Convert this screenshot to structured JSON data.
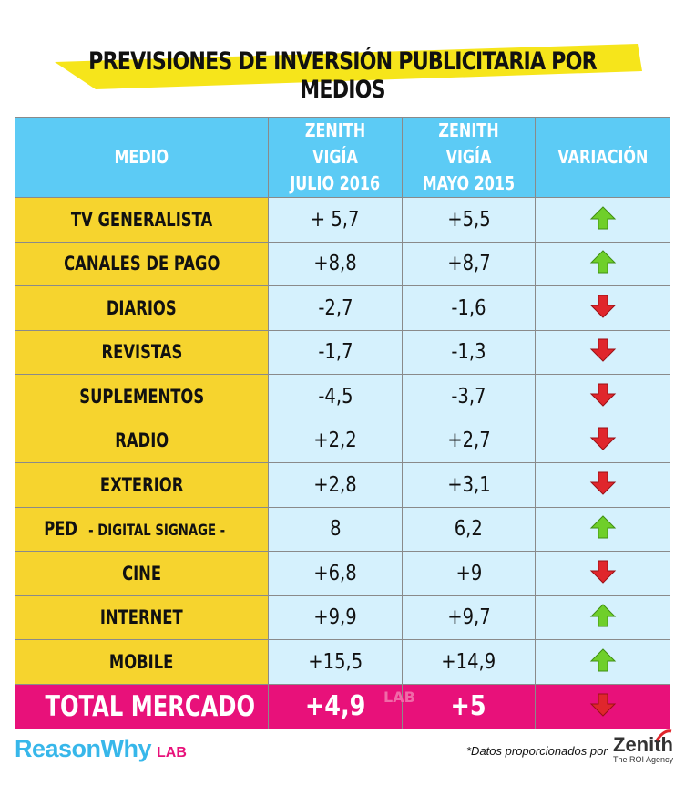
{
  "title": "PREVISIONES DE INVERSIÓN PUBLICITARIA POR MEDIOS",
  "header": {
    "medio": "MEDIO",
    "col1_line1": "ZENITH VIGÍA",
    "col1_line2": "JULIO 2016",
    "col2_line1": "ZENITH VIGÍA",
    "col2_line2": "MAYO 2015",
    "variacion": "VARIACIÓN"
  },
  "rows": [
    {
      "medio": "TV GENERALISTA",
      "julio_2016": "+ 5,7",
      "mayo_2015": "+5,5",
      "variacion": "up"
    },
    {
      "medio": "CANALES DE PAGO",
      "julio_2016": "+8,8",
      "mayo_2015": "+8,7",
      "variacion": "up"
    },
    {
      "medio": "DIARIOS",
      "julio_2016": "-2,7",
      "mayo_2015": "-1,6",
      "variacion": "down"
    },
    {
      "medio": "REVISTAS",
      "julio_2016": "-1,7",
      "mayo_2015": "-1,3",
      "variacion": "down"
    },
    {
      "medio": "SUPLEMENTOS",
      "julio_2016": "-4,5",
      "mayo_2015": "-3,7",
      "variacion": "down"
    },
    {
      "medio": "RADIO",
      "julio_2016": "+2,2",
      "mayo_2015": "+2,7",
      "variacion": "down"
    },
    {
      "medio": "EXTERIOR",
      "julio_2016": "+2,8",
      "mayo_2015": "+3,1",
      "variacion": "down"
    },
    {
      "medio": "PED",
      "medio_sub": " - DIGITAL SIGNAGE -",
      "julio_2016": "8",
      "mayo_2015": "6,2",
      "variacion": "up"
    },
    {
      "medio": "CINE",
      "julio_2016": "+6,8",
      "mayo_2015": "+9",
      "variacion": "down"
    },
    {
      "medio": "INTERNET",
      "julio_2016": "+9,9",
      "mayo_2015": "+9,7",
      "variacion": "up"
    },
    {
      "medio": "MOBILE",
      "julio_2016": "+15,5",
      "mayo_2015": "+14,9",
      "variacion": "up"
    }
  ],
  "total": {
    "medio": "TOTAL MERCADO",
    "julio_2016": "+4,9",
    "mayo_2015": "+5",
    "variacion": "down"
  },
  "watermark": "LAB",
  "brand": {
    "name": "ReasonWhy",
    "lab": "LAB"
  },
  "footnote": "*Datos proporcionados por",
  "zenith": {
    "name": "Zenith",
    "tagline": "The ROI Agency"
  },
  "colors": {
    "header_bg": "#5ccbf5",
    "medio_bg": "#f6d42e",
    "value_bg": "#d5f1fd",
    "total_bg": "#e8117a",
    "arrow_up": "#6fcf2a",
    "arrow_down": "#e0262c",
    "title_band": "#f6e51b"
  },
  "chart_data": {
    "type": "table",
    "title": "PREVISIONES DE INVERSIÓN PUBLICITARIA POR MEDIOS",
    "columns": [
      "MEDIO",
      "ZENITH VIGÍA JULIO 2016",
      "ZENITH VIGÍA MAYO 2015",
      "VARIACIÓN"
    ],
    "categories": [
      "TV GENERALISTA",
      "CANALES DE PAGO",
      "DIARIOS",
      "REVISTAS",
      "SUPLEMENTOS",
      "RADIO",
      "EXTERIOR",
      "PED - DIGITAL SIGNAGE -",
      "CINE",
      "INTERNET",
      "MOBILE",
      "TOTAL MERCADO"
    ],
    "series": [
      {
        "name": "ZENITH VIGÍA JULIO 2016",
        "values": [
          5.7,
          8.8,
          -2.7,
          -1.7,
          -4.5,
          2.2,
          2.8,
          8,
          6.8,
          9.9,
          15.5,
          4.9
        ]
      },
      {
        "name": "ZENITH VIGÍA MAYO 2015",
        "values": [
          5.5,
          8.7,
          -1.6,
          -1.3,
          -3.7,
          2.7,
          3.1,
          6.2,
          9,
          9.7,
          14.9,
          5
        ]
      }
    ],
    "variacion": [
      "up",
      "up",
      "down",
      "down",
      "down",
      "down",
      "down",
      "up",
      "down",
      "up",
      "up",
      "down"
    ]
  }
}
